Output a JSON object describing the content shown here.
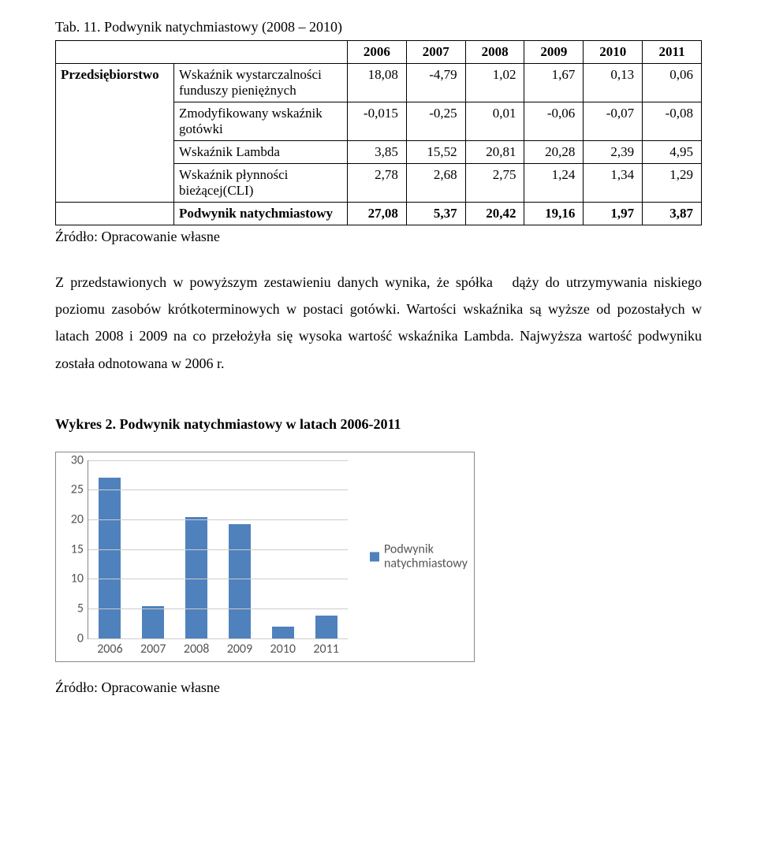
{
  "table": {
    "caption": "Tab. 11. Podwynik natychmiastowy (2008 – 2010)",
    "corner": "Przedsiębiorstwo",
    "years": [
      "2006",
      "2007",
      "2008",
      "2009",
      "2010",
      "2011"
    ],
    "row_labels": [
      "Wskaźnik wystarczalności funduszy pieniężnych",
      "Zmodyfikowany wskaźnik gotówki",
      "Wskaźnik Lambda",
      "Wskaźnik płynności bieżącej(CLI)"
    ],
    "data": [
      [
        "18,08",
        "-4,79",
        "1,02",
        "1,67",
        "0,13",
        "0,06"
      ],
      [
        "-0,015",
        "-0,25",
        "0,01",
        "-0,06",
        "-0,07",
        "-0,08"
      ],
      [
        "3,85",
        "15,52",
        "20,81",
        "20,28",
        "2,39",
        "4,95"
      ],
      [
        "2,78",
        "2,68",
        "2,75",
        "1,24",
        "1,34",
        "1,29"
      ]
    ],
    "pod_label": "Podwynik natychmiastowy",
    "pod_row": [
      "27,08",
      "5,37",
      "20,42",
      "19,16",
      "1,97",
      "3,87"
    ]
  },
  "src_label": "Źródło: Opracowanie własne",
  "body": {
    "p1": "Z przedstawionych w powyższym zestawieniu danych wynika, że spółka   dąży do utrzymywania niskiego poziomu zasobów krótkoterminowych w postaci gotówki. Wartości wskaźnika są wyższe od pozostałych w latach 2008 i 2009 na co przełożyła się wysoka wartość wskaźnika Lambda. Najwyższa wartość podwyniku została odnotowana w 2006 r."
  },
  "chart": {
    "title": "Wykres 2. Podwynik natychmiastowy w latach 2006-2011",
    "series_label": "Podwynik natychmiastowy",
    "categories": [
      "2006",
      "2007",
      "2008",
      "2009",
      "2010",
      "2011"
    ],
    "values": [
      27.08,
      5.37,
      20.42,
      19.16,
      1.97,
      3.87
    ],
    "ymax": 30,
    "ytick_step": 5,
    "bar_color": "#4f81bd",
    "grid_color": "#cccccc",
    "axis_color": "#888888",
    "tick_font": "Calibri",
    "tick_fontsize": 16,
    "tick_color": "#595959"
  },
  "src_label2": "Źródło: Opracowanie własne"
}
